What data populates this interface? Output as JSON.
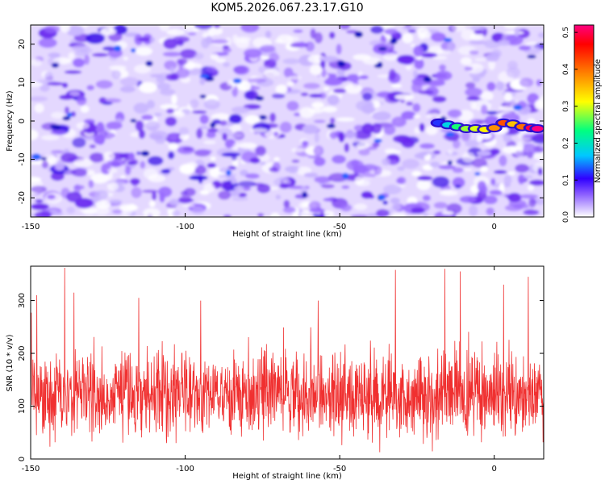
{
  "title": "KOM5.2026.067.23.17.G10",
  "chart_data": [
    {
      "type": "heatmap",
      "xlabel": "Height of straight line (km)",
      "ylabel": "Frequency (Hz)",
      "xlim": [
        -150,
        16
      ],
      "ylim": [
        -25,
        25
      ],
      "xticks": [
        -150,
        -100,
        -50,
        0
      ],
      "yticks": [
        -20,
        -10,
        0,
        10,
        20
      ],
      "colorbar": {
        "label": "Normalized spectral amplitude",
        "range": [
          0,
          0.52
        ],
        "ticks": [
          "0.0",
          "0.1",
          "0.2",
          "0.3",
          "0.4",
          "0.5"
        ],
        "colormap": [
          "#ffffff",
          "#8a5cff",
          "#3000ff",
          "#00c8ff",
          "#00ff80",
          "#ffff00",
          "#ff8000",
          "#ff0000",
          "#ff0080"
        ]
      },
      "signal_track": {
        "x": [
          -18,
          -15,
          -12,
          -9,
          -6,
          -3,
          0,
          3,
          6,
          9,
          12,
          14
        ],
        "y": [
          -0.5,
          -1,
          -1.5,
          -2,
          -2,
          -2.2,
          -1.8,
          -0.5,
          -0.8,
          -1.5,
          -1.8,
          -2
        ],
        "amplitude": [
          0.12,
          0.18,
          0.24,
          0.28,
          0.3,
          0.32,
          0.38,
          0.42,
          0.35,
          0.4,
          0.5,
          0.52
        ]
      }
    },
    {
      "type": "line",
      "xlabel": "Height of straight line (km)",
      "ylabel": "SNR (10 * v/v)",
      "xlim": [
        -150,
        16
      ],
      "ylim": [
        0,
        365
      ],
      "xticks": [
        -150,
        -100,
        -50,
        0
      ],
      "yticks": [
        0,
        100,
        200,
        300
      ],
      "color": "#f03030",
      "series": [
        {
          "n_points": 1600,
          "baseline": 120,
          "spread": 55,
          "peaks": [
            [
              -139,
              362
            ],
            [
              -136,
              315
            ],
            [
              -148,
              310
            ],
            [
              -32,
              358
            ],
            [
              -16,
              360
            ],
            [
              -11,
              355
            ],
            [
              11,
              345
            ],
            [
              3,
              330
            ],
            [
              -57,
              300
            ],
            [
              -115,
              305
            ],
            [
              -95,
              300
            ]
          ]
        }
      ]
    }
  ]
}
